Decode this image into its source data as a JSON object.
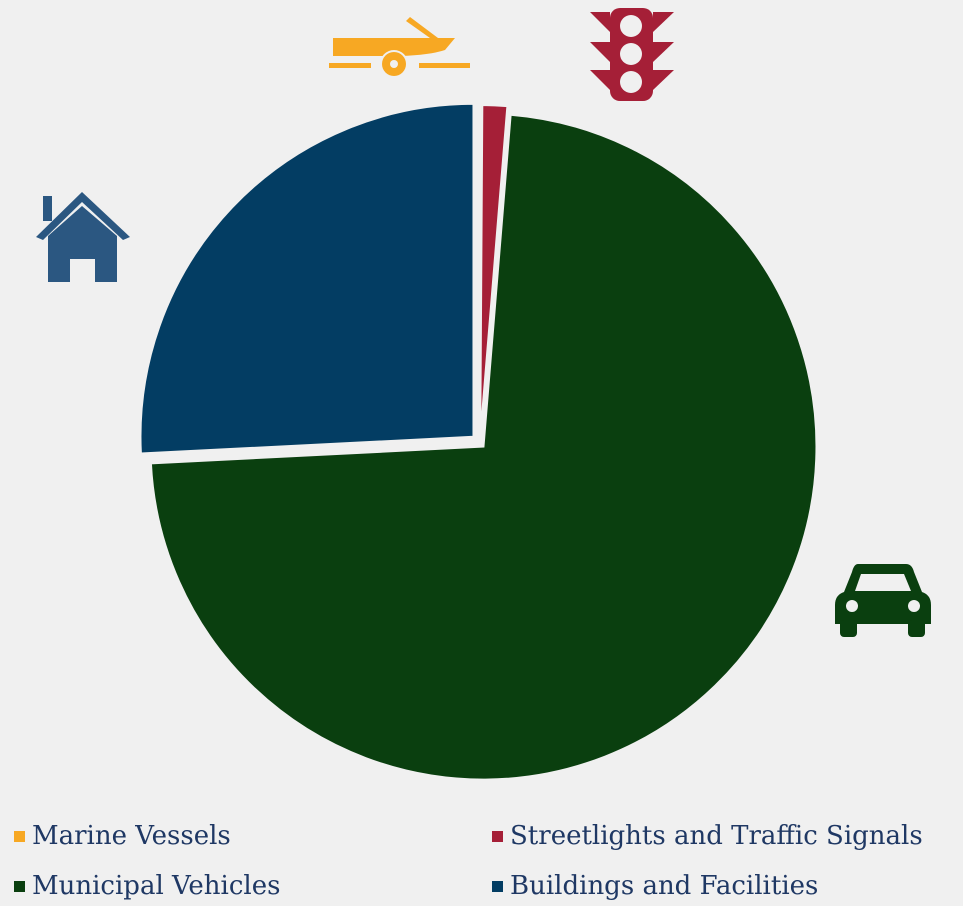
{
  "chart_data": {
    "type": "pie",
    "title": "",
    "categories": [
      "Marine Vessels",
      "Streetlights and Traffic Signals",
      "Municipal Vehicles",
      "Buildings and Facilities"
    ],
    "values": [
      0.1,
      1.2,
      72.9,
      25.8
    ],
    "colors": [
      "#f7a823",
      "#a51f37",
      "#0a3f0f",
      "#033d63"
    ],
    "icons": [
      "boat-trailer-icon",
      "traffic-light-icon",
      "car-icon",
      "house-icon"
    ],
    "legend_position": "bottom",
    "legend_columns": 2,
    "exploded": true
  }
}
